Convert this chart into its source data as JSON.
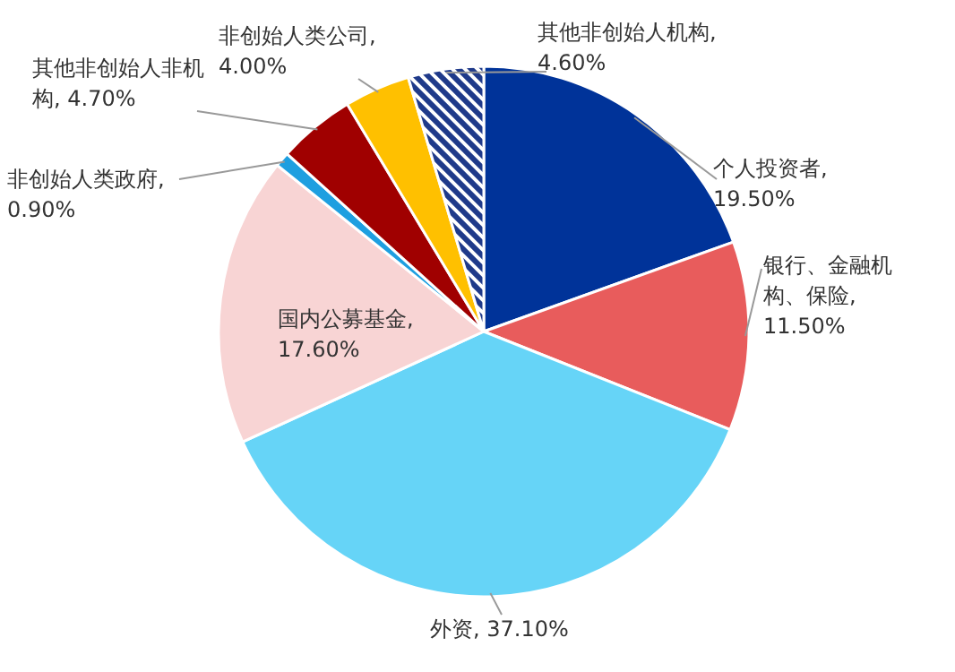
{
  "chart_data": {
    "type": "pie",
    "categories": [
      "个人投资者, 19.50%",
      "银行、金融机构、保险, 11.50%",
      "外资, 37.10%",
      "国内公募基金, 17.60%",
      "非创始人类政府, 0.90%",
      "其他非创始人非机构, 4.70%",
      "非创始人类公司, 4.00%",
      "其他非创始人机构, 4.60%"
    ],
    "values": [
      19.5,
      11.5,
      37.1,
      17.6,
      0.9,
      4.7,
      4.0,
      4.6
    ],
    "colors": [
      "#003399",
      "#e85c5c",
      "#66d4f7",
      "#f8d4d4",
      "#1e9fe0",
      "#a00000",
      "#ffc000",
      "#1f3a8a"
    ]
  }
}
